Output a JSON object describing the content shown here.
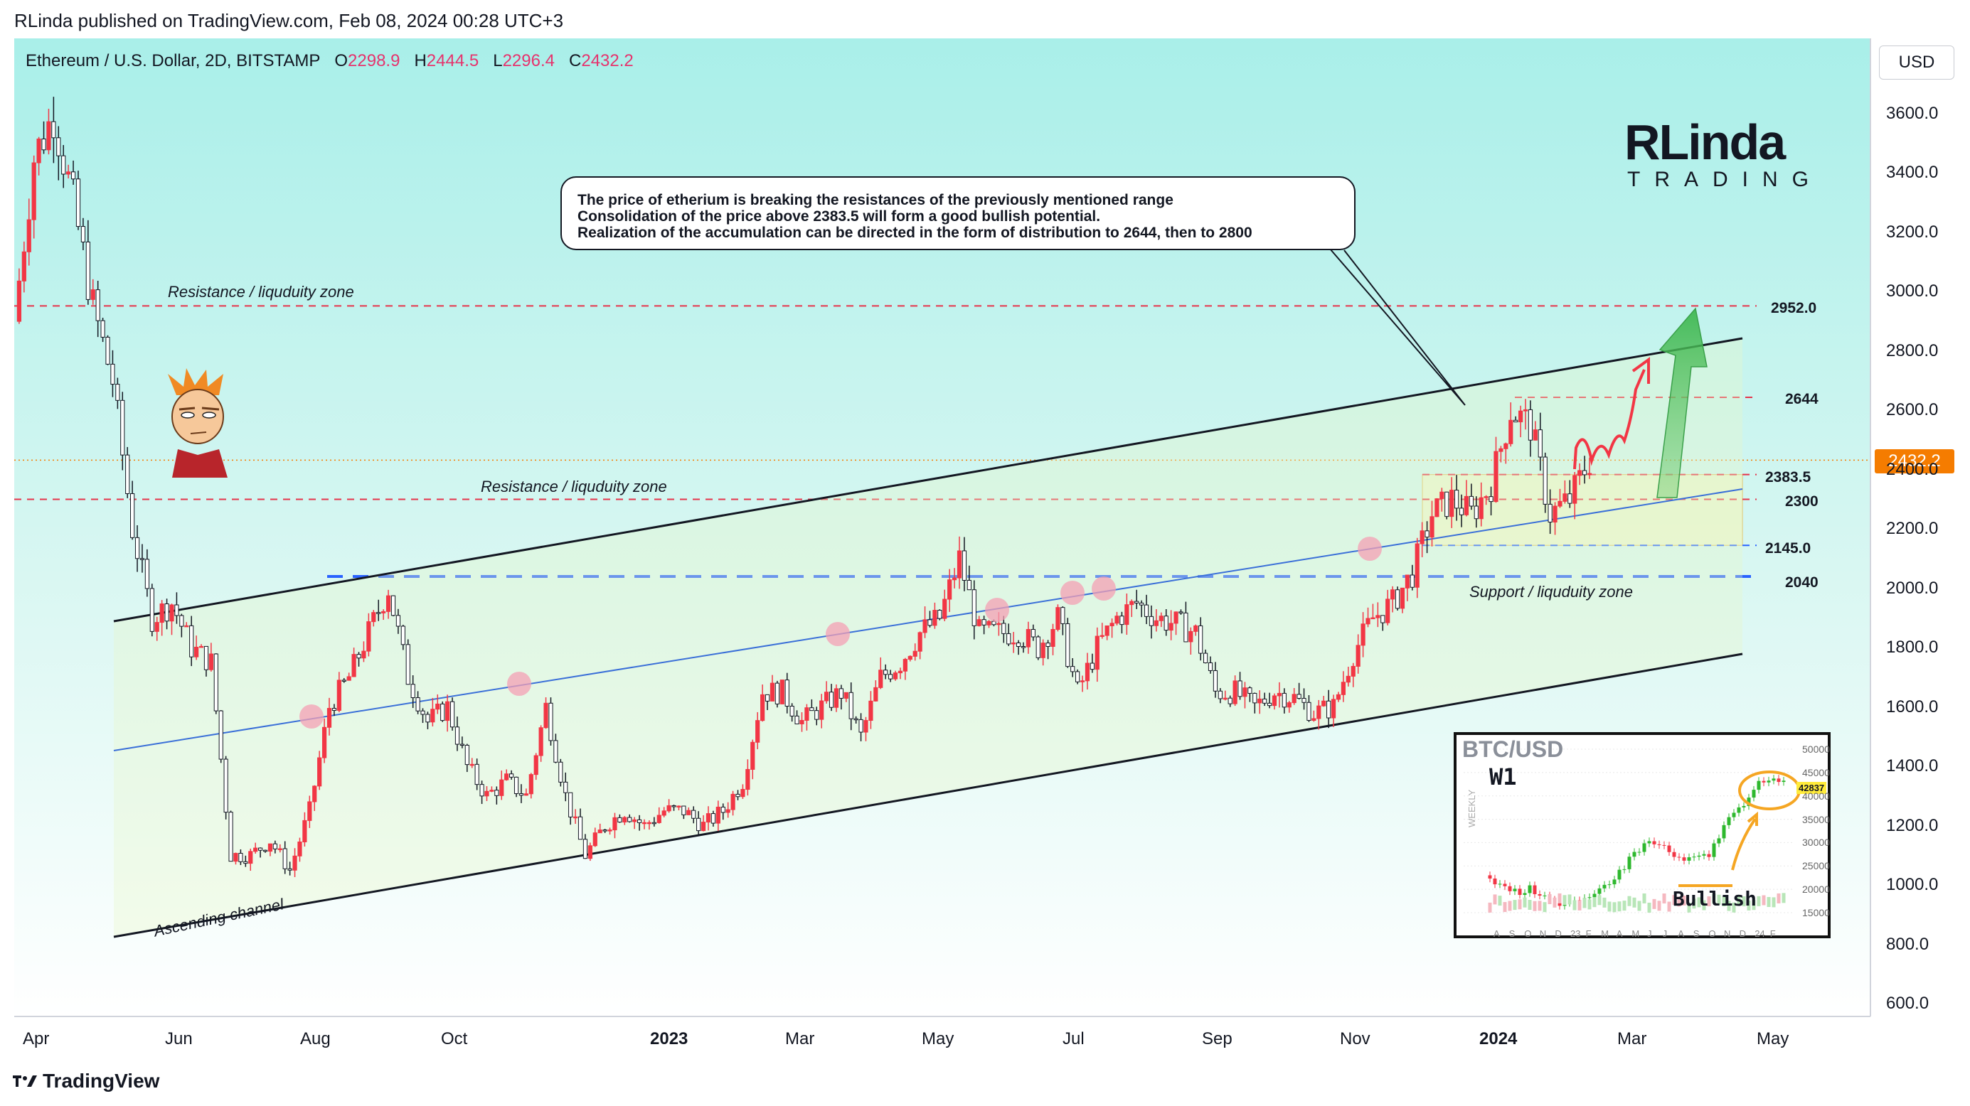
{
  "publisher": "RLinda published on TradingView.com, Feb 08, 2024 00:28 UTC+3",
  "header": {
    "symbol": "Ethereum / U.S. Dollar, 2D, BITSTAMP",
    "o_label": "O",
    "o_value": "2298.9",
    "h_label": "H",
    "h_value": "2444.5",
    "l_label": "L",
    "l_value": "2296.4",
    "c_label": "C",
    "c_value": "2432.2"
  },
  "currency_button": "USD",
  "footer": {
    "brand": "TradingView"
  },
  "brand_logo": {
    "name": "RLinda",
    "sub": "TRADING"
  },
  "note": {
    "line1": "The price of etherium is breaking the resistances of the previously mentioned range",
    "line2": "Consolidation of the price above 2383.5 will form a good bullish potential.",
    "line3": "Realization of the accumulation can be directed in the form of distribution to 2644, then to 2800"
  },
  "annotations": {
    "resistance_top": "Resistance / liquduity zone",
    "resistance_mid": "Resistance / liquduity zone",
    "support": "Support / liquduity zone",
    "channel": "Ascending channel"
  },
  "levels": {
    "l2952": "2952.0",
    "l2644": "2644",
    "l2383": "2383.5",
    "l2300": "2300",
    "l2145": "2145.0",
    "l2040": "2040"
  },
  "last_price": "2432.2",
  "colors": {
    "up": "#f23645",
    "down": "#131722",
    "resistance_line": "#e6334a",
    "support_line": "#2962ff",
    "channel_line": "#131722",
    "mid_line": "#3a6fd8",
    "price_tag": "#f57c00",
    "bg_top": "#a9efe9",
    "bg_bottom": "#ffffff"
  },
  "chart_data": {
    "type": "candlestick",
    "symbol": "Ethereum / U.S. Dollar",
    "interval": "2D",
    "exchange": "BITSTAMP",
    "y_ticks": [
      "3600.0",
      "3400.0",
      "3200.0",
      "3000.0",
      "2800.0",
      "2600.0",
      "2400.0",
      "2200.0",
      "2000.0",
      "1800.0",
      "1600.0",
      "1400.0",
      "1200.0",
      "1000.0",
      "800.0",
      "600.0"
    ],
    "x_ticks": [
      {
        "label": "Apr",
        "bold": false
      },
      {
        "label": "Jun",
        "bold": false
      },
      {
        "label": "Aug",
        "bold": false
      },
      {
        "label": "Oct",
        "bold": false
      },
      {
        "label": "2023",
        "bold": true
      },
      {
        "label": "Mar",
        "bold": false
      },
      {
        "label": "May",
        "bold": false
      },
      {
        "label": "Jul",
        "bold": false
      },
      {
        "label": "Sep",
        "bold": false
      },
      {
        "label": "Nov",
        "bold": false
      },
      {
        "label": "2024",
        "bold": true
      },
      {
        "label": "Mar",
        "bold": false
      },
      {
        "label": "May",
        "bold": false
      }
    ],
    "ylim": [
      550,
      3750
    ],
    "price_path": [
      [
        0,
        2900
      ],
      [
        4,
        3450
      ],
      [
        8,
        3600
      ],
      [
        12,
        3300
      ],
      [
        16,
        2950
      ],
      [
        20,
        2700
      ],
      [
        24,
        2200
      ],
      [
        28,
        1900
      ],
      [
        32,
        1950
      ],
      [
        36,
        1800
      ],
      [
        40,
        1750
      ],
      [
        44,
        1100
      ],
      [
        48,
        1100
      ],
      [
        52,
        1150
      ],
      [
        56,
        1050
      ],
      [
        60,
        1250
      ],
      [
        64,
        1600
      ],
      [
        68,
        1700
      ],
      [
        72,
        1850
      ],
      [
        76,
        2000
      ],
      [
        80,
        1700
      ],
      [
        84,
        1550
      ],
      [
        88,
        1600
      ],
      [
        92,
        1400
      ],
      [
        96,
        1300
      ],
      [
        100,
        1350
      ],
      [
        104,
        1300
      ],
      [
        108,
        1600
      ],
      [
        112,
        1300
      ],
      [
        116,
        1100
      ],
      [
        120,
        1200
      ],
      [
        124,
        1250
      ],
      [
        128,
        1200
      ],
      [
        132,
        1250
      ],
      [
        136,
        1250
      ],
      [
        140,
        1200
      ],
      [
        144,
        1250
      ],
      [
        148,
        1350
      ],
      [
        152,
        1650
      ],
      [
        156,
        1650
      ],
      [
        160,
        1550
      ],
      [
        164,
        1600
      ],
      [
        168,
        1650
      ],
      [
        172,
        1500
      ],
      [
        176,
        1700
      ],
      [
        180,
        1750
      ],
      [
        184,
        1850
      ],
      [
        188,
        1900
      ],
      [
        192,
        2100
      ],
      [
        196,
        1850
      ],
      [
        200,
        1850
      ],
      [
        204,
        1850
      ],
      [
        208,
        1800
      ],
      [
        212,
        1900
      ],
      [
        216,
        1650
      ],
      [
        220,
        1800
      ],
      [
        224,
        1900
      ],
      [
        228,
        1950
      ],
      [
        232,
        1900
      ],
      [
        236,
        1880
      ],
      [
        240,
        1850
      ],
      [
        244,
        1650
      ],
      [
        248,
        1650
      ],
      [
        252,
        1600
      ],
      [
        256,
        1650
      ],
      [
        260,
        1630
      ],
      [
        264,
        1580
      ],
      [
        268,
        1600
      ],
      [
        272,
        1780
      ],
      [
        276,
        1900
      ],
      [
        280,
        1950
      ],
      [
        284,
        2050
      ],
      [
        288,
        2250
      ],
      [
        292,
        2300
      ],
      [
        296,
        2250
      ],
      [
        300,
        2350
      ],
      [
        304,
        2600
      ],
      [
        308,
        2550
      ],
      [
        312,
        2250
      ],
      [
        316,
        2300
      ],
      [
        320,
        2432
      ]
    ],
    "levels": [
      2952.0,
      2644,
      2383.5,
      2300,
      2145.0,
      2040
    ],
    "last": 2432.2,
    "projection_targets": [
      2644,
      2800
    ],
    "ohlc": {
      "open": 2298.9,
      "high": 2444.5,
      "low": 2296.4,
      "close": 2432.2
    }
  },
  "inset": {
    "title": "BTC/USD",
    "timeframe": "W1",
    "axis_side": "WEEKLY",
    "label": "Bullish",
    "last": "42837",
    "y_ticks": [
      "50000",
      "45000",
      "40000",
      "35000",
      "30000",
      "25000",
      "20000",
      "15000"
    ],
    "x_ticks": [
      "A",
      "S",
      "O",
      "N",
      "D",
      "23",
      "F",
      "M",
      "A",
      "M",
      "J",
      "J",
      "A",
      "S",
      "O",
      "N",
      "D",
      "24",
      "F"
    ],
    "path": [
      [
        0,
        23000
      ],
      [
        3,
        21000
      ],
      [
        6,
        19500
      ],
      [
        9,
        20000
      ],
      [
        12,
        19000
      ],
      [
        15,
        17000
      ],
      [
        18,
        16800
      ],
      [
        21,
        17500
      ],
      [
        24,
        21000
      ],
      [
        27,
        23500
      ],
      [
        30,
        28000
      ],
      [
        33,
        30000
      ],
      [
        36,
        29000
      ],
      [
        39,
        26000
      ],
      [
        42,
        26500
      ],
      [
        45,
        27000
      ],
      [
        48,
        34000
      ],
      [
        51,
        37000
      ],
      [
        54,
        42000
      ],
      [
        57,
        43000
      ],
      [
        60,
        42837
      ]
    ]
  }
}
